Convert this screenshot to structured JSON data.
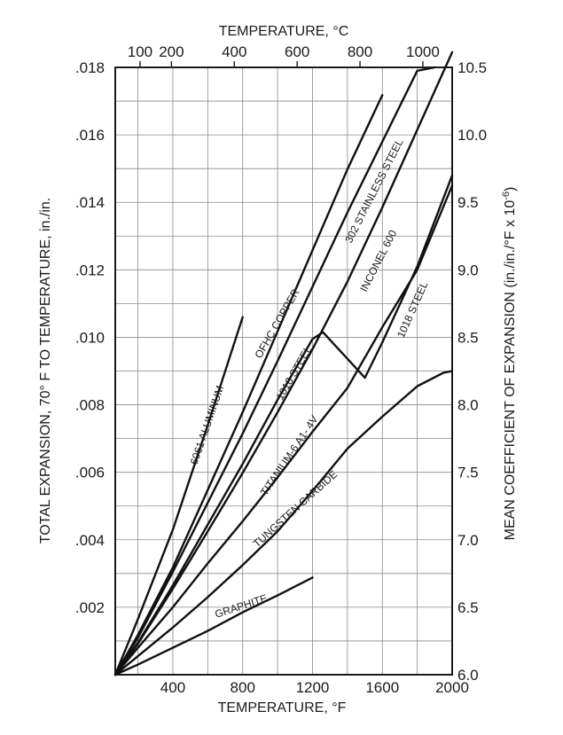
{
  "chart_data": {
    "type": "line",
    "xlabel_bottom": "TEMPERATURE, °F",
    "xlabel_top": "TEMPERATURE, °C",
    "ylabel_left": "TOTAL EXPANSION, 70° F TO TEMPERATURE, in./in.",
    "ylabel_right": "MEAN COEFFICIENT OF EXPANSION (in./in./°F x 10",
    "ylabel_right_exp": "-6",
    "ylabel_right_end": ")",
    "xlim": [
      70,
      2000
    ],
    "ylim": [
      0,
      0.018
    ],
    "grid": true,
    "x_ticks_bottom": [
      400,
      800,
      1200,
      1600,
      2000
    ],
    "x_tick_labels_bottom": [
      "400",
      "800",
      "1200",
      "1600",
      "2000"
    ],
    "x_ticks_top_c": [
      100,
      200,
      400,
      600,
      800,
      1000
    ],
    "x_tick_labels_top": [
      "100",
      "200",
      "400",
      "600",
      "800",
      "1000"
    ],
    "y_ticks_left": [
      0.002,
      0.004,
      0.006,
      0.008,
      0.01,
      0.012,
      0.014,
      0.016,
      0.018
    ],
    "y_tick_labels_left": [
      ".002",
      ".004",
      ".006",
      ".008",
      ".010",
      ".012",
      ".014",
      ".016",
      ".018"
    ],
    "y_ticks_right": [
      6.0,
      6.5,
      7.0,
      7.5,
      8.0,
      8.5,
      9.0,
      9.5,
      10.0,
      10.5
    ],
    "y_tick_labels_right": [
      "6.0",
      "6.5",
      "7.0",
      "7.5",
      "8.0",
      "8.5",
      "9.0",
      "9.5",
      "10.0",
      "10.5"
    ],
    "series": [
      {
        "name": "6061 ALUMINUM",
        "x": [
          70,
          200,
          400,
          600,
          800
        ],
        "y": [
          0,
          0.00165,
          0.0043,
          0.0074,
          0.0106
        ]
      },
      {
        "name": "OFHC COPPER",
        "x": [
          70,
          200,
          400,
          600,
          800,
          1000,
          1200,
          1400,
          1600
        ],
        "y": [
          0,
          0.00118,
          0.00318,
          0.00548,
          0.00778,
          0.01018,
          0.01258,
          0.01498,
          0.01718
        ]
      },
      {
        "name": "302 STAINLESS STEEL",
        "x": [
          70,
          200,
          400,
          600,
          800,
          1000,
          1200,
          1400,
          1600,
          1800,
          1900
        ],
        "y": [
          0,
          0.0011,
          0.00305,
          0.0051,
          0.00715,
          0.0093,
          0.0115,
          0.0137,
          0.0158,
          0.0179,
          0.018
        ]
      },
      {
        "name": "1018 STEEL",
        "x": [
          70,
          200,
          400,
          600,
          800,
          1000,
          1200,
          1260,
          1500,
          1600,
          1800,
          2000
        ],
        "y": [
          0,
          0.00095,
          0.00265,
          0.00445,
          0.00625,
          0.00815,
          0.00995,
          0.01015,
          0.0088,
          0.00985,
          0.0121,
          0.0148
        ]
      },
      {
        "name": "INCONEL 600",
        "x": [
          70,
          200,
          400,
          600,
          800,
          1000,
          1200,
          1400,
          1600,
          1800,
          2000
        ],
        "y": [
          0,
          0.00092,
          0.00255,
          0.00425,
          0.00598,
          0.00778,
          0.00965,
          0.01165,
          0.01385,
          0.01615,
          0.01845
        ]
      },
      {
        "name": "TITANIUM-6 A1- 4V",
        "x": [
          70,
          200,
          400,
          600,
          800,
          1000,
          1200,
          1400,
          1600,
          1800,
          2000
        ],
        "y": [
          0,
          0.0008,
          0.002,
          0.0033,
          0.00455,
          0.00585,
          0.0072,
          0.0085,
          0.0103,
          0.012,
          0.0145
        ]
      },
      {
        "name": "TUNGSTEN CARBIDE",
        "x": [
          70,
          200,
          400,
          600,
          800,
          1000,
          1200,
          1400,
          1600,
          1800,
          1950,
          2000
        ],
        "y": [
          0,
          0.00055,
          0.0014,
          0.0023,
          0.00325,
          0.00425,
          0.00545,
          0.0067,
          0.00765,
          0.00855,
          0.00895,
          0.009
        ]
      },
      {
        "name": "GRAPHITE",
        "x": [
          70,
          200,
          400,
          600,
          800,
          1000,
          1200
        ],
        "y": [
          0,
          0.0003,
          0.0008,
          0.0013,
          0.00185,
          0.00235,
          0.00288
        ]
      }
    ]
  }
}
